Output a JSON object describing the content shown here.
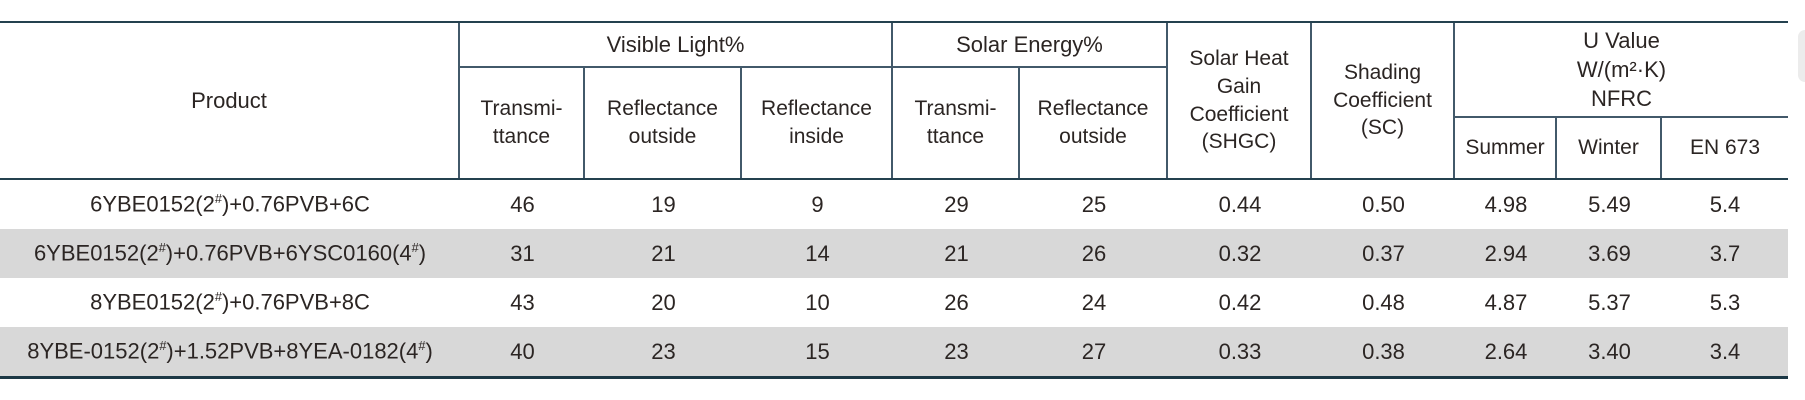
{
  "header": {
    "product": "Product",
    "visible_light": {
      "label": "Visible Light%",
      "transmittance": "Transmi-\nttance",
      "reflectance_outside": "Reflectance\noutside",
      "reflectance_inside": "Reflectance\ninside"
    },
    "solar_energy": {
      "label": "Solar Energy%",
      "transmittance": "Transmi-\nttance",
      "reflectance_outside": "Reflectance\noutside"
    },
    "shgc": "Solar Heat\nGain\nCoefficient\n(SHGC)",
    "sc": "Shading\nCoefficient\n(SC)",
    "u_value": {
      "label": "U Value\nW/(m²·K)\nNFRC",
      "summer": "Summer",
      "winter": "Winter",
      "en673": "EN 673"
    }
  },
  "rows": [
    {
      "product": "6YBE0152(2#)+0.76PVB+6C",
      "vl_t": "46",
      "vl_ro": "19",
      "vl_ri": "9",
      "se_t": "29",
      "se_ro": "25",
      "shgc": "0.44",
      "sc": "0.50",
      "u_summer": "4.98",
      "u_winter": "5.49",
      "u_en673": "5.4"
    },
    {
      "product": "6YBE0152(2#)+0.76PVB+6YSC0160(4#)",
      "vl_t": "31",
      "vl_ro": "21",
      "vl_ri": "14",
      "se_t": "21",
      "se_ro": "26",
      "shgc": "0.32",
      "sc": "0.37",
      "u_summer": "2.94",
      "u_winter": "3.69",
      "u_en673": "3.7"
    },
    {
      "product": "8YBE0152(2#)+0.76PVB+8C",
      "vl_t": "43",
      "vl_ro": "20",
      "vl_ri": "10",
      "se_t": "26",
      "se_ro": "24",
      "shgc": "0.42",
      "sc": "0.48",
      "u_summer": "4.87",
      "u_winter": "5.37",
      "u_en673": "5.3"
    },
    {
      "product": "8YBE-0152(2#)+1.52PVB+8YEA-0182(4#)",
      "vl_t": "40",
      "vl_ro": "23",
      "vl_ri": "15",
      "se_t": "23",
      "se_ro": "27",
      "shgc": "0.33",
      "sc": "0.38",
      "u_summer": "2.64",
      "u_winter": "3.40",
      "u_en673": "3.4"
    }
  ],
  "colors": {
    "text": "#2b2523",
    "line-internal": "#42596a",
    "line-strong": "#24414f",
    "line-bottom": "#1c3845",
    "row-alt-bg": "#d8d8d8",
    "page-bg": "#ffffff",
    "artifact": "#ececec"
  }
}
